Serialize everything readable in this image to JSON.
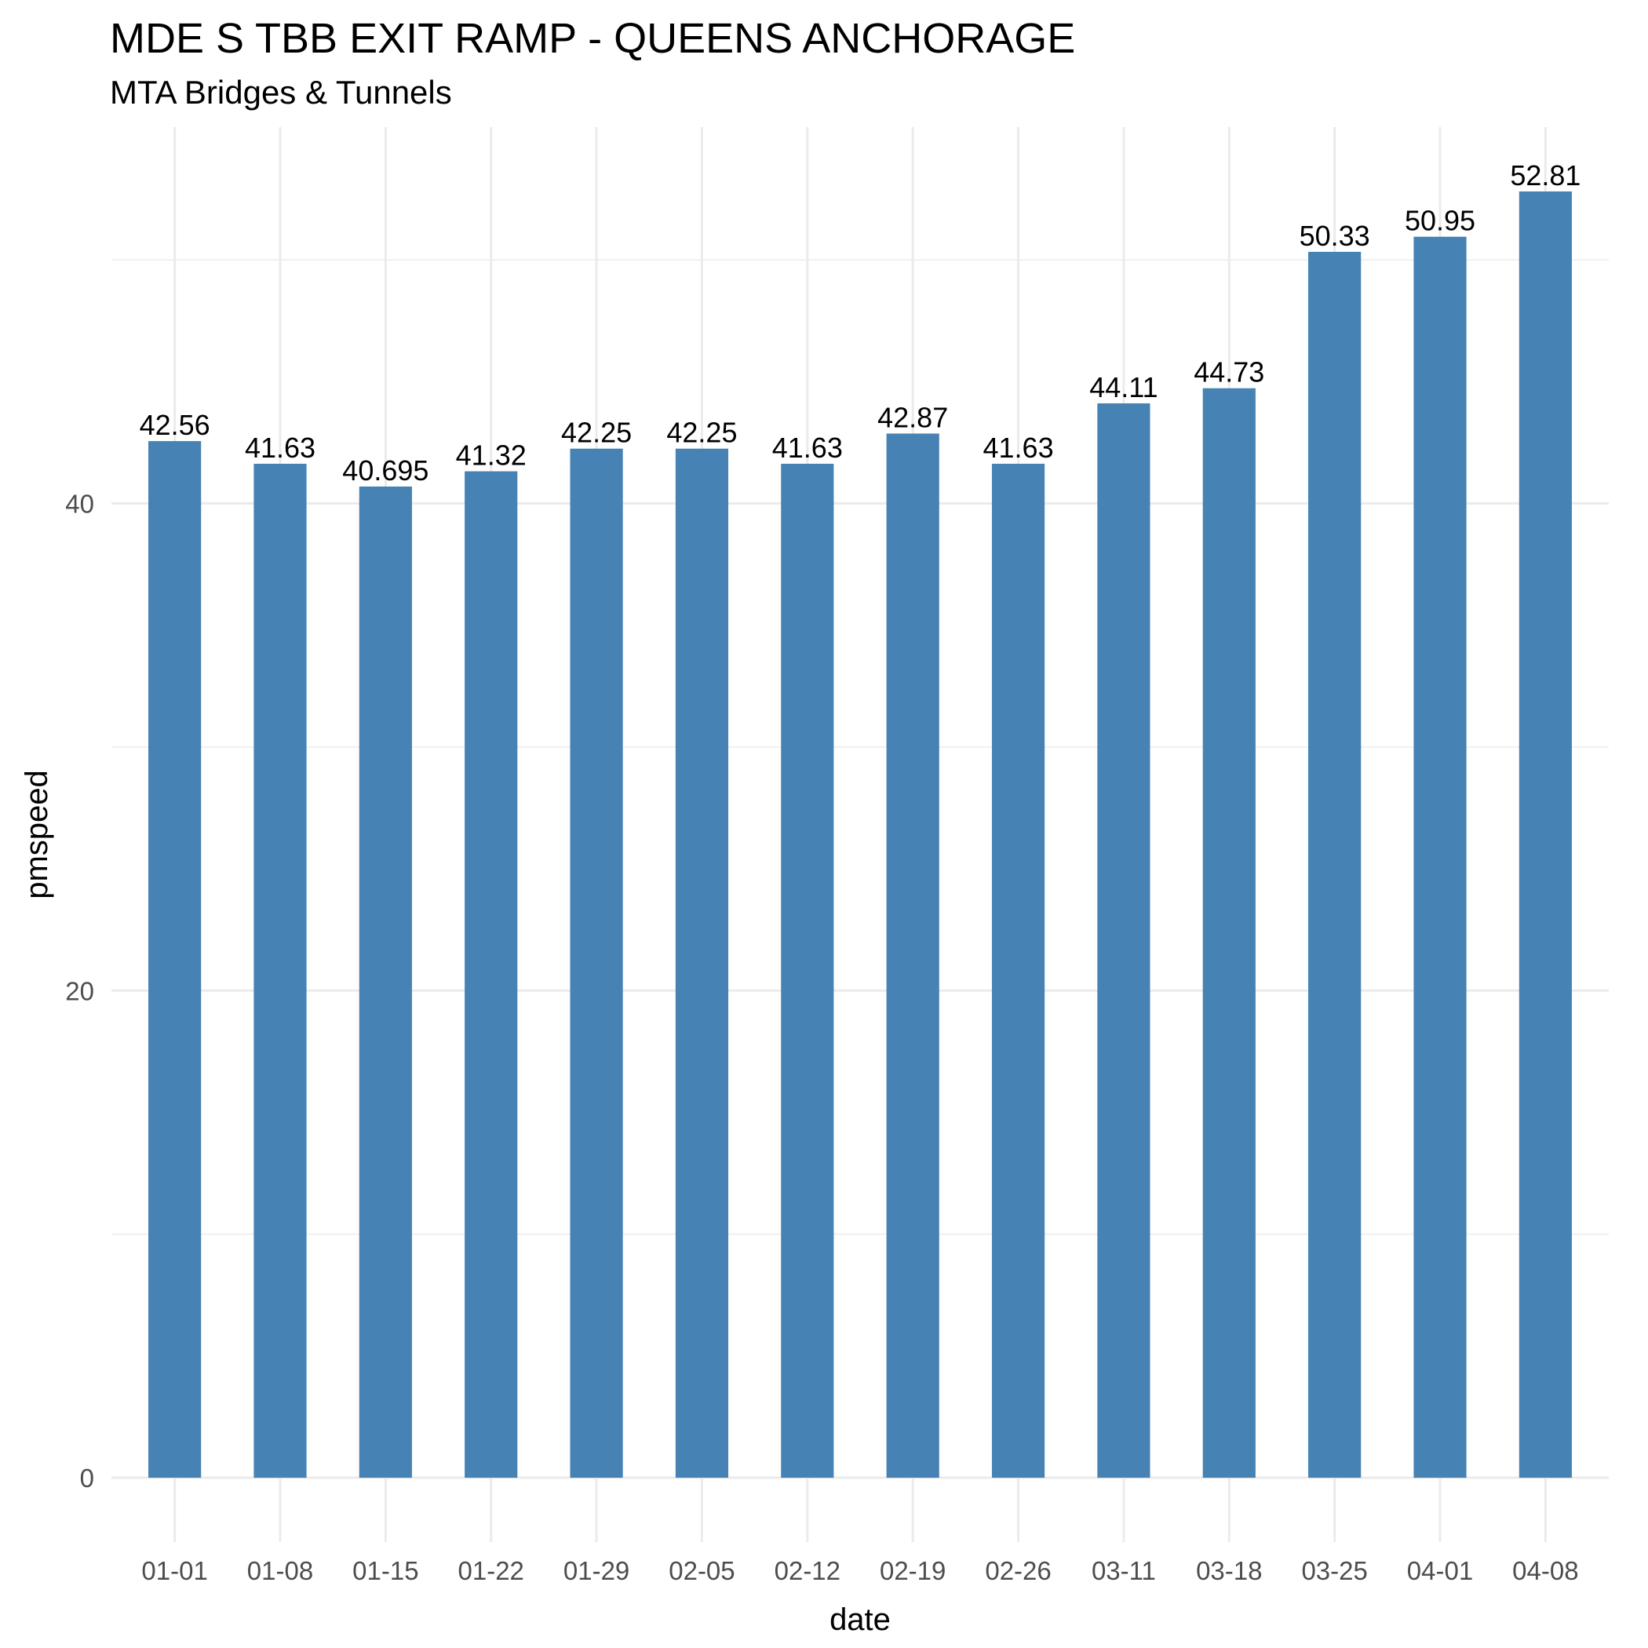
{
  "chart_data": {
    "type": "bar",
    "title": "MDE S TBB EXIT RAMP - QUEENS ANCHORAGE",
    "subtitle": "MTA Bridges & Tunnels",
    "xlabel": "date",
    "ylabel": "pmspeed",
    "categories": [
      "01-01",
      "01-08",
      "01-15",
      "01-22",
      "01-29",
      "02-05",
      "02-12",
      "02-19",
      "02-26",
      "03-11",
      "03-18",
      "03-25",
      "04-01",
      "04-08"
    ],
    "values": [
      42.56,
      41.63,
      40.695,
      41.32,
      42.25,
      42.25,
      41.63,
      42.87,
      41.63,
      44.11,
      44.73,
      50.33,
      50.95,
      52.81
    ],
    "value_labels": [
      "42.56",
      "41.63",
      "40.695",
      "41.32",
      "42.25",
      "42.25",
      "41.63",
      "42.87",
      "41.63",
      "44.11",
      "44.73",
      "50.33",
      "50.95",
      "52.81"
    ],
    "y_ticks": [
      0,
      20,
      40
    ],
    "y_tick_labels": [
      "0",
      "20",
      "40"
    ],
    "ylim": [
      -2.64,
      55.45
    ],
    "grid": true,
    "legend": "none",
    "bar_color": "#4682b4"
  }
}
